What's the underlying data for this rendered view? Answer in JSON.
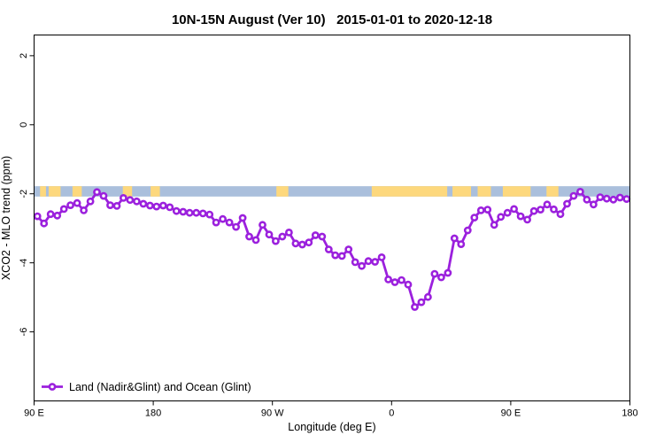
{
  "title": "10N-15N August (Ver 10)   2015-01-01 to 2020-12-18",
  "colors": {
    "series_purple": "#9b20dd",
    "band_ocean_blue": "#aabfdc",
    "band_land_yellow": "#fdd87d",
    "axis_black": "#000000",
    "background": "#ffffff"
  },
  "chart_data": {
    "type": "line",
    "title": "10N-15N August (Ver 10)   2015-01-01 to 2020-12-18",
    "xlabel": "Longitude (deg E)",
    "ylabel": "XCO2 - MLO trend (ppm)",
    "xlim": [
      90,
      540
    ],
    "ylim": [
      -8,
      2.6
    ],
    "grid": false,
    "x_ticks": [
      {
        "value": 90,
        "label": "90 E"
      },
      {
        "value": 180,
        "label": "180"
      },
      {
        "value": 270,
        "label": "90 W"
      },
      {
        "value": 360,
        "label": "0"
      },
      {
        "value": 450,
        "label": "90 E"
      },
      {
        "value": 540,
        "label": "180"
      }
    ],
    "y_ticks": [
      {
        "value": 2,
        "label": "2"
      },
      {
        "value": 0,
        "label": "0"
      },
      {
        "value": -2,
        "label": "-2"
      },
      {
        "value": -4,
        "label": "-4"
      },
      {
        "value": -6,
        "label": "-6"
      }
    ],
    "reference_band": {
      "y_top": -1.78,
      "y_bottom": -2.08,
      "ocean_color": "#aabfdc",
      "land_color": "#fdd87d",
      "land_segments_lon": [
        [
          94.5,
          99
        ],
        [
          101,
          110
        ],
        [
          119,
          126
        ],
        [
          157,
          164
        ],
        [
          178,
          185
        ],
        [
          273,
          282
        ],
        [
          345,
          402
        ],
        [
          406,
          420
        ],
        [
          425,
          435
        ],
        [
          444,
          465
        ],
        [
          477,
          486
        ]
      ]
    },
    "legend": {
      "label": "Land (Nadir&Glint) and Ocean (Glint)",
      "position": "bottom-left"
    },
    "series": [
      {
        "name": "Land (Nadir&Glint) and Ocean (Glint)",
        "color": "#9b20dd",
        "marker": "open-circle",
        "x_start": 92.5,
        "x_step": 5,
        "values": [
          -2.65,
          -2.86,
          -2.59,
          -2.63,
          -2.44,
          -2.33,
          -2.27,
          -2.48,
          -2.22,
          -1.95,
          -2.06,
          -2.33,
          -2.35,
          -2.12,
          -2.18,
          -2.22,
          -2.29,
          -2.34,
          -2.37,
          -2.34,
          -2.39,
          -2.5,
          -2.52,
          -2.55,
          -2.55,
          -2.57,
          -2.6,
          -2.83,
          -2.73,
          -2.83,
          -2.96,
          -2.7,
          -3.24,
          -3.34,
          -2.9,
          -3.18,
          -3.37,
          -3.24,
          -3.12,
          -3.44,
          -3.47,
          -3.41,
          -3.2,
          -3.24,
          -3.61,
          -3.78,
          -3.8,
          -3.61,
          -3.98,
          -4.09,
          -3.95,
          -3.97,
          -3.84,
          -4.48,
          -4.56,
          -4.5,
          -4.63,
          -5.28,
          -5.14,
          -4.99,
          -4.32,
          -4.42,
          -4.29,
          -3.29,
          -3.46,
          -3.06,
          -2.69,
          -2.48,
          -2.46,
          -2.9,
          -2.67,
          -2.55,
          -2.44,
          -2.65,
          -2.75,
          -2.5,
          -2.46,
          -2.31,
          -2.45,
          -2.59,
          -2.29,
          -2.06,
          -1.94,
          -2.17,
          -2.31,
          -2.1,
          -2.14,
          -2.17,
          -2.11,
          -2.15
        ]
      }
    ]
  }
}
